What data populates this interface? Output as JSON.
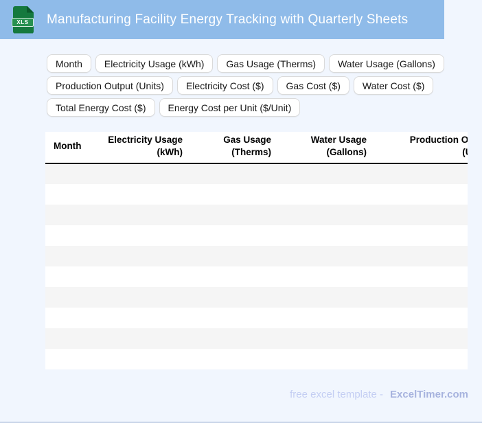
{
  "header": {
    "title": "Manufacturing Facility Energy Tracking with Quarterly Sheets",
    "file_badge": "XLS"
  },
  "chips": [
    "Month",
    "Electricity Usage (kWh)",
    "Gas Usage (Therms)",
    "Water Usage (Gallons)",
    "Production Output (Units)",
    "Electricity Cost ($)",
    "Gas Cost ($)",
    "Water Cost ($)",
    "Total Energy Cost ($)",
    "Energy Cost per Unit ($/Unit)"
  ],
  "table": {
    "columns": [
      {
        "label": "Month"
      },
      {
        "label": "Electricity Usage\n(kWh)"
      },
      {
        "label": "Gas Usage\n(Therms)"
      },
      {
        "label": "Water Usage\n(Gallons)"
      },
      {
        "label": "Production Output\n(Units)"
      }
    ],
    "row_count": 10
  },
  "footer": {
    "text": "free excel template -",
    "brand": "ExcelTimer.com"
  },
  "colors": {
    "page_bg": "#f1f6fe",
    "header_bg": "#8fbbe9",
    "icon_green": "#15793e",
    "icon_green_dark": "#0b5a2c",
    "badge_green": "#279150",
    "chip_border": "#dadada",
    "row_alt": "#f5f5f5",
    "footer_text": "#c4cef3",
    "footer_brand": "#a7b3de",
    "bottom_line": "#c9d5e8"
  }
}
